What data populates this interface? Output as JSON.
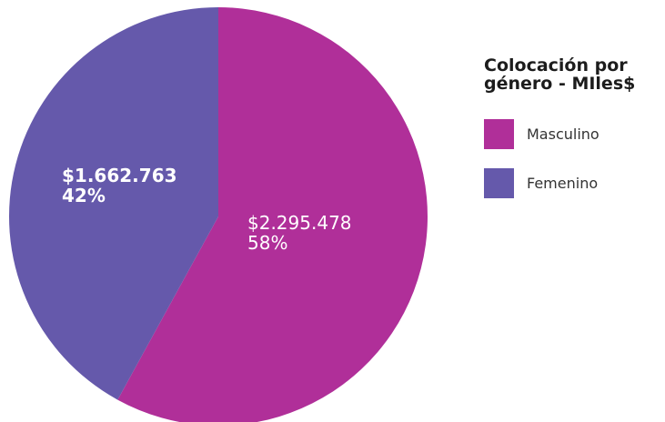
{
  "chart_data": {
    "type": "pie",
    "title": "Colocación por género - MIles$",
    "title_lines": [
      "Colocación por",
      "género - MIles$"
    ],
    "legend_position": "right",
    "start_angle": "12 o'clock, clockwise",
    "slices": [
      {
        "name": "Masculino",
        "value": 2295478,
        "value_label": "$2.295.478",
        "percent": 58,
        "percent_label": "58%",
        "color": "#b02f99",
        "label_weight": "normal"
      },
      {
        "name": "Femenino",
        "value": 1662763,
        "value_label": "$1.662.763",
        "percent": 42,
        "percent_label": "42%",
        "color": "#6559ab",
        "label_weight": "bold"
      }
    ]
  }
}
